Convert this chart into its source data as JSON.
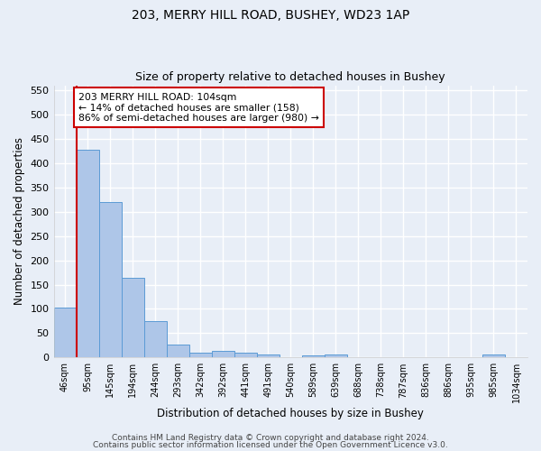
{
  "title1": "203, MERRY HILL ROAD, BUSHEY, WD23 1AP",
  "title2": "Size of property relative to detached houses in Bushey",
  "xlabel": "Distribution of detached houses by size in Bushey",
  "ylabel": "Number of detached properties",
  "categories": [
    "46sqm",
    "95sqm",
    "145sqm",
    "194sqm",
    "244sqm",
    "293sqm",
    "342sqm",
    "392sqm",
    "441sqm",
    "491sqm",
    "540sqm",
    "589sqm",
    "639sqm",
    "688sqm",
    "738sqm",
    "787sqm",
    "836sqm",
    "886sqm",
    "935sqm",
    "985sqm",
    "1034sqm"
  ],
  "values": [
    103,
    428,
    320,
    163,
    75,
    26,
    10,
    13,
    10,
    6,
    0,
    5,
    6,
    0,
    0,
    0,
    0,
    0,
    0,
    6,
    0
  ],
  "bar_color": "#aec6e8",
  "bar_edge_color": "#5b9bd5",
  "background_color": "#e8eef7",
  "grid_color": "#ffffff",
  "vline_x": 1.0,
  "vline_color": "#cc0000",
  "annotation_text": "203 MERRY HILL ROAD: 104sqm\n← 14% of detached houses are smaller (158)\n86% of semi-detached houses are larger (980) →",
  "annotation_box_color": "#ffffff",
  "annotation_box_edge": "#cc0000",
  "footer1": "Contains HM Land Registry data © Crown copyright and database right 2024.",
  "footer2": "Contains public sector information licensed under the Open Government Licence v3.0.",
  "ylim": [
    0,
    560
  ],
  "yticks": [
    0,
    50,
    100,
    150,
    200,
    250,
    300,
    350,
    400,
    450,
    500,
    550
  ]
}
